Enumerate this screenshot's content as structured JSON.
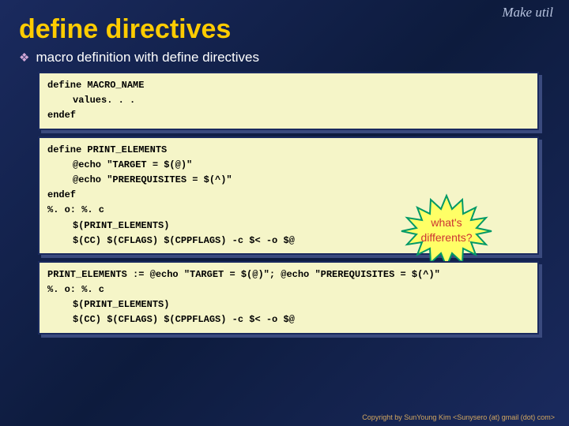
{
  "header_label": "Make util",
  "title": "define directives",
  "subtitle": "macro definition with define directives",
  "bullet_char": "❖",
  "box1": {
    "lines": [
      {
        "text": "define MACRO_NAME",
        "indent": false
      },
      {
        "text": "values. . .",
        "indent": true
      },
      {
        "text": "endef",
        "indent": false
      }
    ]
  },
  "box2": {
    "lines": [
      {
        "text": "define PRINT_ELEMENTS",
        "indent": false
      },
      {
        "text": "@echo \"TARGET = $(@)\"",
        "indent": true
      },
      {
        "text": "@echo \"PREREQUISITES = $(^)\"",
        "indent": true
      },
      {
        "text": "endef",
        "indent": false
      },
      {
        "text": "%. o: %. c",
        "indent": false
      },
      {
        "text": "$(PRINT_ELEMENTS)",
        "indent": true
      },
      {
        "text": "$(CC) $(CFLAGS) $(CPPFLAGS) -c $< -o $@",
        "indent": true
      }
    ],
    "callout": {
      "line1": "what's",
      "line2": "differents?",
      "fill_color": "#ffff66",
      "stroke_color": "#009966",
      "text_color": "#cc3333"
    }
  },
  "box3": {
    "lines": [
      {
        "text": "PRINT_ELEMENTS := @echo \"TARGET = $(@)\"; @echo \"PREREQUISITES = $(^)\"",
        "indent": false
      },
      {
        "text": "%. o: %. c",
        "indent": false
      },
      {
        "text": "$(PRINT_ELEMENTS)",
        "indent": true
      },
      {
        "text": "$(CC) $(CFLAGS) $(CPPFLAGS) -c $< -o $@",
        "indent": true
      }
    ]
  },
  "footer": "Copyright by SunYoung Kim <Sunysero (at) gmail (dot) com>",
  "colors": {
    "title_color": "#ffcc00",
    "bg_gradient_start": "#1a2a5e",
    "bg_gradient_end": "#0d1b3d",
    "box_bg": "#f5f5c8",
    "box_border": "#1a2a5e",
    "box_shadow": "#3a4a7e",
    "bullet_color": "#d4a8d8",
    "subtitle_color": "#ffffff",
    "footer_color": "#d4a860"
  },
  "fonts": {
    "title_size": 34,
    "subtitle_size": 17,
    "code_size": 12,
    "code_family": "Courier New"
  }
}
